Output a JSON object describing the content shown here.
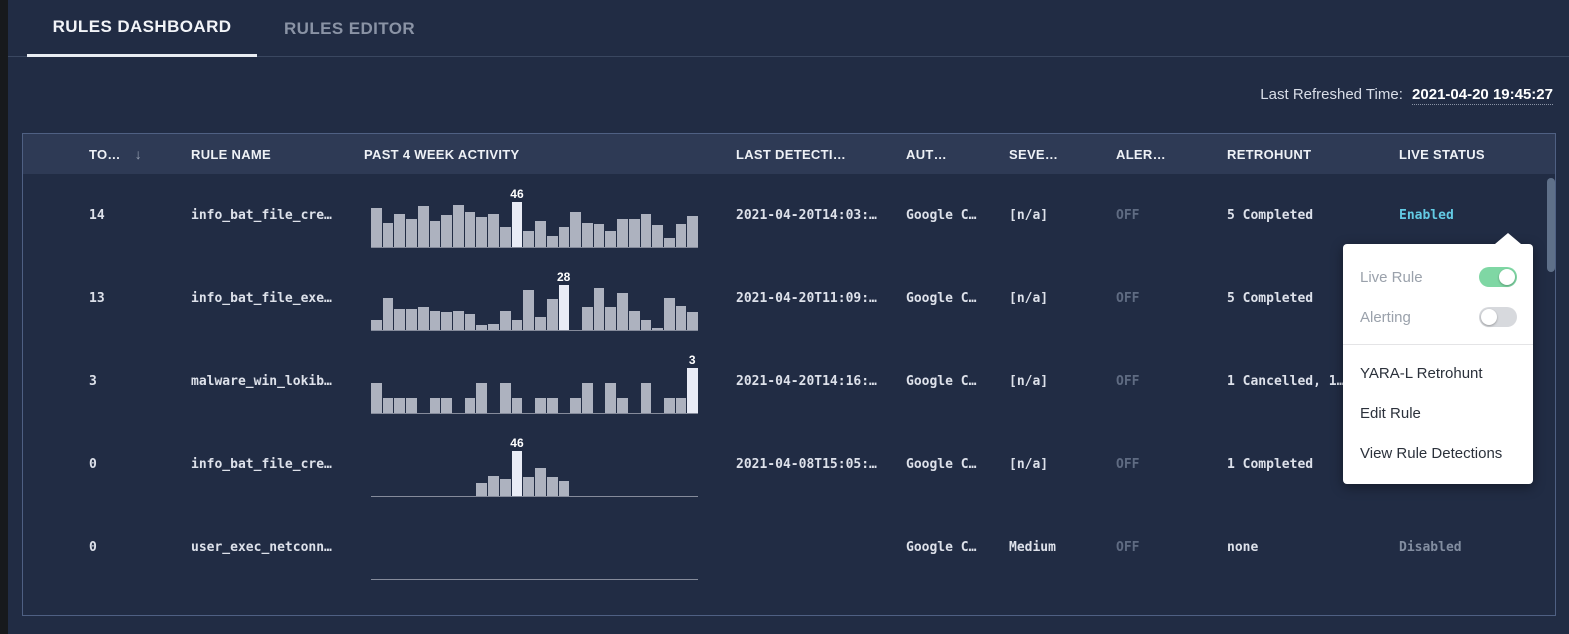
{
  "tabs": [
    {
      "label": "RULES DASHBOARD",
      "active": true
    },
    {
      "label": "RULES EDITOR",
      "active": false
    }
  ],
  "last_refreshed": {
    "label": "Last Refreshed Time:",
    "value": "2021-04-20 19:45:27"
  },
  "table": {
    "columns": [
      {
        "id": "total",
        "label": "TO…",
        "sorted": "descending"
      },
      {
        "id": "rule_name",
        "label": "RULE NAME"
      },
      {
        "id": "activity",
        "label": "PAST 4 WEEK ACTIVITY"
      },
      {
        "id": "last_detection",
        "label": "LAST DETECTI…"
      },
      {
        "id": "author",
        "label": "AUT…"
      },
      {
        "id": "severity",
        "label": "SEVE…"
      },
      {
        "id": "alerting",
        "label": "ALER…"
      },
      {
        "id": "retrohunt",
        "label": "RETROHUNT"
      },
      {
        "id": "live_status",
        "label": "LIVE STATUS"
      }
    ],
    "rows": [
      {
        "total": "14",
        "rule_name": "info_bat_file_cre…",
        "last_detection": "2021-04-20T14:03:…",
        "author": "Google C…",
        "severity": "[n/a]",
        "alerting": "OFF",
        "retrohunt": "5 Completed",
        "live_status": "Enabled",
        "live_status_state": "enabled",
        "chart": {
          "type": "bar",
          "max": 46,
          "label": "46",
          "highlight_index": 12,
          "values": [
            40,
            25,
            34,
            29,
            42,
            27,
            33,
            43,
            36,
            31,
            34,
            20,
            46,
            16,
            27,
            11,
            20,
            36,
            25,
            23,
            16,
            29,
            29,
            34,
            22,
            9,
            23,
            32
          ]
        }
      },
      {
        "total": "13",
        "rule_name": "info_bat_file_exe…",
        "last_detection": "2021-04-20T11:09:…",
        "author": "Google C…",
        "severity": "[n/a]",
        "alerting": "OFF",
        "retrohunt": "5 Completed",
        "live_status": "",
        "live_status_state": "",
        "chart": {
          "type": "bar",
          "max": 28,
          "label": "28",
          "highlight_index": 16,
          "values": [
            6,
            20,
            13,
            13,
            14,
            12,
            11,
            12,
            10,
            3,
            4,
            12,
            6,
            25,
            8,
            19,
            28,
            0,
            14,
            26,
            14,
            23,
            12,
            6,
            1,
            20,
            15,
            11
          ]
        }
      },
      {
        "total": "3",
        "rule_name": "malware_win_lokib…",
        "last_detection": "2021-04-20T14:16:…",
        "author": "Google C…",
        "severity": "[n/a]",
        "alerting": "OFF",
        "retrohunt": "1 Cancelled, 1…",
        "live_status": "",
        "live_status_state": "",
        "chart": {
          "type": "bar",
          "max": 3,
          "label": "3",
          "highlight_index": 27,
          "values": [
            2,
            1,
            1,
            1,
            0,
            1,
            1,
            0,
            1,
            2,
            0,
            2,
            1,
            0,
            1,
            1,
            0,
            1,
            2,
            0,
            2,
            1,
            0,
            2,
            0,
            1,
            1,
            3
          ]
        }
      },
      {
        "total": "0",
        "rule_name": "info_bat_file_cre…",
        "last_detection": "2021-04-08T15:05:…",
        "author": "Google C…",
        "severity": "[n/a]",
        "alerting": "OFF",
        "retrohunt": "1 Completed",
        "live_status": "",
        "live_status_state": "",
        "chart": {
          "type": "bar",
          "max": 46,
          "label": "46",
          "highlight_index": 12,
          "values": [
            0,
            0,
            0,
            0,
            0,
            0,
            0,
            0,
            0,
            13,
            20,
            17,
            46,
            19,
            29,
            19,
            15,
            0,
            0,
            0,
            0,
            0,
            0,
            0,
            0,
            0,
            0,
            0
          ]
        }
      },
      {
        "total": "0",
        "rule_name": "user_exec_netconn…",
        "last_detection": "",
        "author": "Google C…",
        "severity": "Medium",
        "alerting": "OFF",
        "retrohunt": "none",
        "live_status": "Disabled",
        "live_status_state": "disabled",
        "chart": {
          "type": "bar",
          "max": 0,
          "label": "",
          "highlight_index": -1,
          "values": []
        }
      }
    ]
  },
  "context_menu": {
    "toggles": [
      {
        "label": "Live Rule",
        "on": true
      },
      {
        "label": "Alerting",
        "on": false
      }
    ],
    "items": [
      {
        "label": "YARA-L Retrohunt"
      },
      {
        "label": "Edit Rule"
      },
      {
        "label": "View Rule Detections"
      }
    ]
  },
  "colors": {
    "page_background": "#212c44",
    "header_background": "#2e3a55",
    "table_border": "#4f6083",
    "bar": "#adb2bf",
    "bar_highlight": "#e9ecf6",
    "enabled_text": "#63cbe4",
    "disabled_text": "#828da0",
    "toggle_on": "#7fd7a4",
    "toggle_off": "#d7d9dd"
  }
}
